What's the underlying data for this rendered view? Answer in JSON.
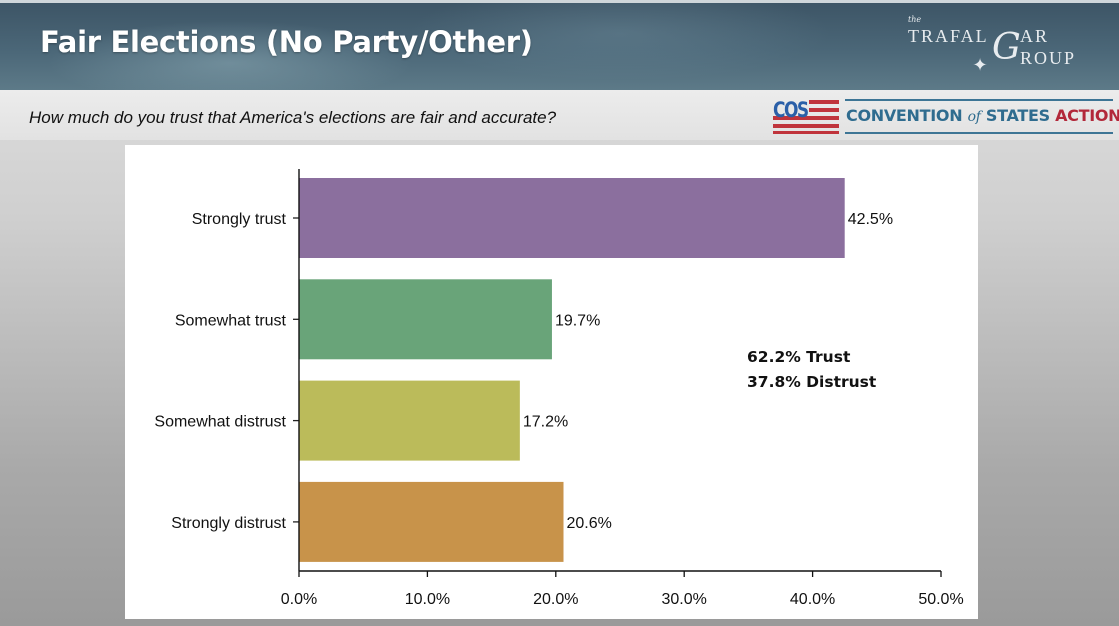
{
  "header": {
    "title": "Fair Elections (No Party/Other)",
    "pollster_logo": {
      "the": "the",
      "line1": "TRAFAL",
      "big_letter": "G",
      "line1_end": "AR",
      "line2": "ROUP",
      "icon": "compass-star-icon"
    },
    "question": "How much do you trust that America's elections are fair and accurate?",
    "sponsor_logo": {
      "abbr": "COS",
      "name_part1": "CONVENTION",
      "name_of": "of",
      "name_part2": "STATES",
      "name_part3": "ACTION",
      "colors": {
        "blue": "#2f6c8f",
        "red": "#b2283a"
      }
    }
  },
  "summary": {
    "trust": "62.2% Trust",
    "distrust": "37.8% Distrust"
  },
  "chart_data": {
    "type": "bar",
    "orientation": "horizontal",
    "title": "How much do you trust that America's elections are fair and accurate?",
    "categories": [
      "Strongly trust",
      "Somewhat trust",
      "Somewhat distrust",
      "Strongly distrust"
    ],
    "values": [
      42.5,
      19.7,
      17.2,
      20.6
    ],
    "value_labels": [
      "42.5%",
      "19.7%",
      "17.2%",
      "20.6%"
    ],
    "colors": [
      "#8b6f9e",
      "#69a479",
      "#bbbb5a",
      "#c8934a"
    ],
    "xlim": [
      0,
      50
    ],
    "xticks": [
      0,
      10,
      20,
      30,
      40,
      50
    ],
    "xtick_labels": [
      "0.0%",
      "10.0%",
      "20.0%",
      "30.0%",
      "40.0%",
      "50.0%"
    ],
    "xlabel": "",
    "ylabel": "",
    "grid": false,
    "legend": "none"
  }
}
